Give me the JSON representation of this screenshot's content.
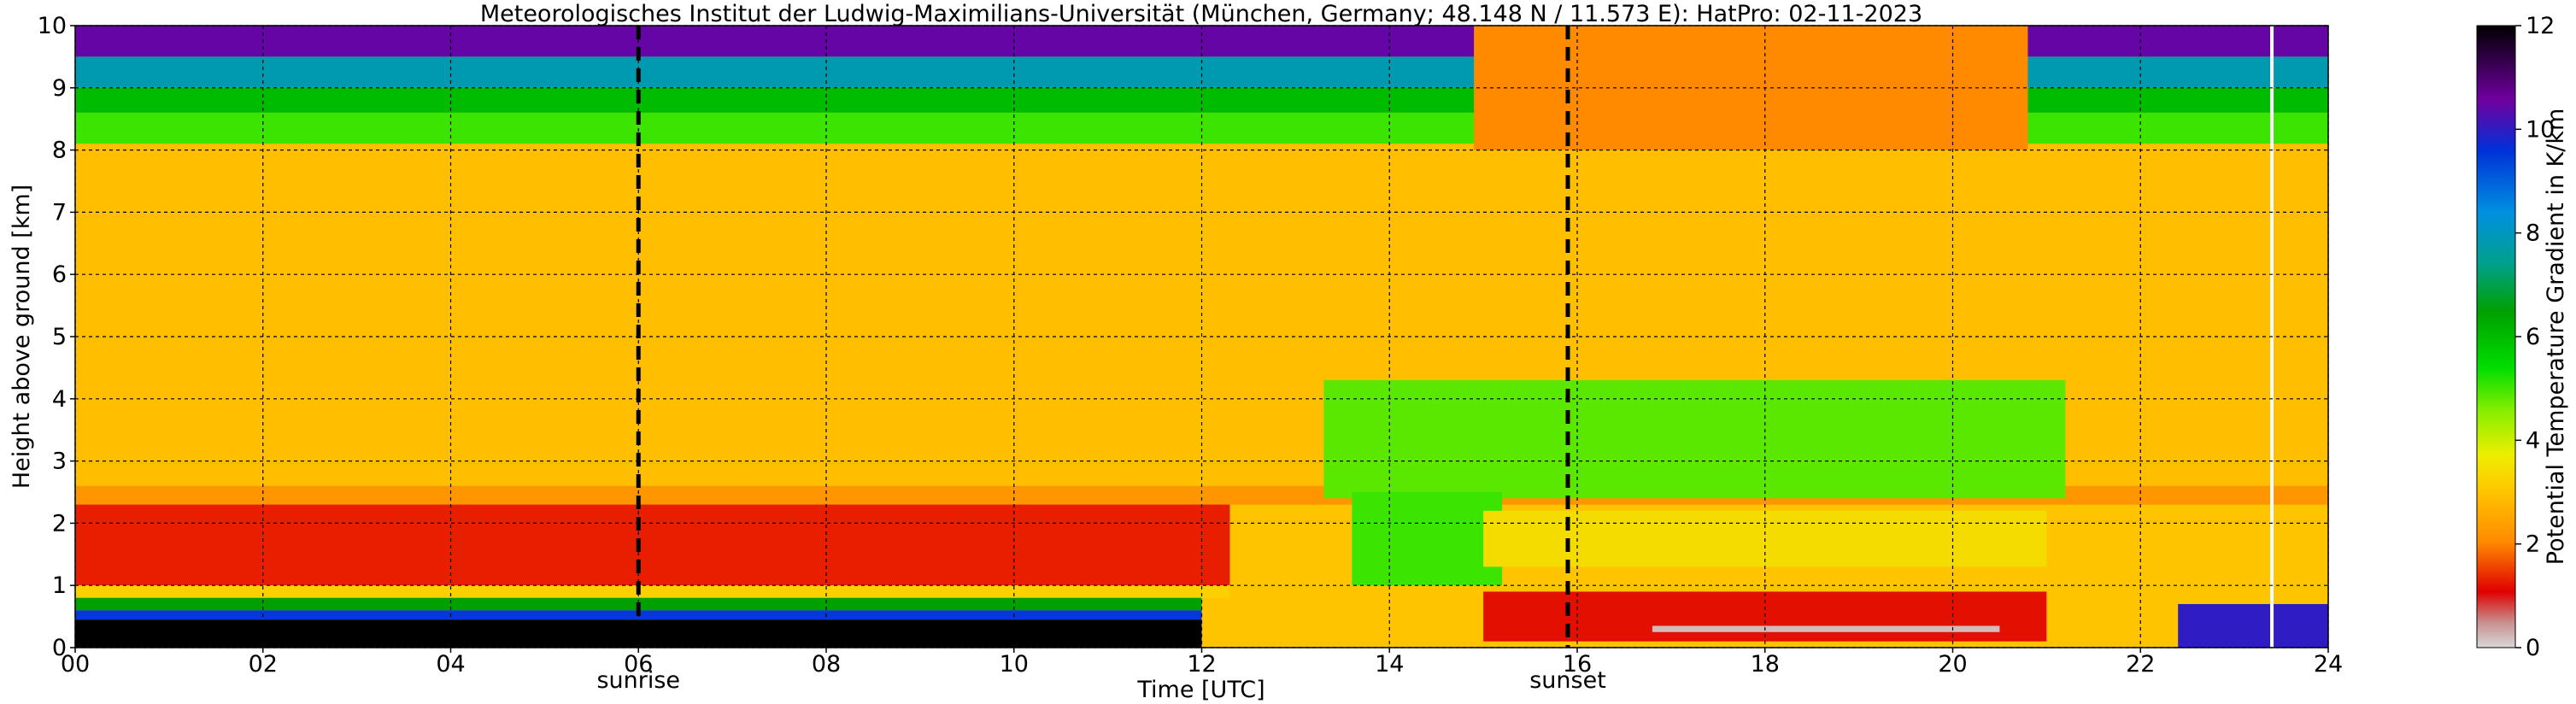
{
  "chart_data": {
    "type": "heatmap",
    "title": "Meteorologisches Institut der Ludwig-Maximilians-Universität (München, Germany; 48.148 N / 11.573 E):    HatPro: 02-11-2023",
    "xlabel": "Time [UTC]",
    "ylabel": "Height above ground [km]",
    "xlim": [
      0,
      24
    ],
    "ylim": [
      0,
      10
    ],
    "x_ticks": [
      "00",
      "02",
      "04",
      "06",
      "08",
      "10",
      "12",
      "14",
      "16",
      "18",
      "20",
      "22",
      "24"
    ],
    "y_ticks": [
      "0",
      "1",
      "2",
      "3",
      "4",
      "5",
      "6",
      "7",
      "8",
      "9",
      "10"
    ],
    "grid": true,
    "colorbar": {
      "label": "Potential Temperature Gradient in K/km",
      "range": [
        0,
        12
      ],
      "ticks": [
        "0",
        "2",
        "4",
        "6",
        "8",
        "10",
        "12"
      ]
    },
    "events": [
      {
        "label": "sunrise",
        "time": 6.0
      },
      {
        "label": "sunset",
        "time": 15.9
      }
    ],
    "data_gap_time": 23.4,
    "regions": [
      {
        "t": [
          0,
          24
        ],
        "h": [
          9.5,
          10
        ],
        "value": 10.5
      },
      {
        "t": [
          0,
          24
        ],
        "h": [
          9.0,
          9.5
        ],
        "value": 7.8
      },
      {
        "t": [
          0,
          24
        ],
        "h": [
          8.6,
          9.0
        ],
        "value": 6.0
      },
      {
        "t": [
          0,
          24
        ],
        "h": [
          8.1,
          8.6
        ],
        "value": 5.0
      },
      {
        "t": [
          0,
          24
        ],
        "h": [
          2.6,
          8.1
        ],
        "value": 2.9
      },
      {
        "t": [
          0,
          24
        ],
        "h": [
          2.3,
          2.6
        ],
        "value": 2.2
      },
      {
        "t": [
          0,
          24
        ],
        "h": [
          1.0,
          2.3
        ],
        "value": 1.3
      },
      {
        "t": [
          0,
          24
        ],
        "h": [
          0.8,
          1.0
        ],
        "value": 3.2
      },
      {
        "t": [
          0,
          12
        ],
        "h": [
          0.6,
          0.8
        ],
        "value": 6.5
      },
      {
        "t": [
          0,
          12
        ],
        "h": [
          0.45,
          0.6
        ],
        "value": 9.5
      },
      {
        "t": [
          0,
          12
        ],
        "h": [
          0.0,
          0.45
        ],
        "value": 12
      },
      {
        "t": [
          12.3,
          24
        ],
        "h": [
          0.0,
          2.3
        ],
        "value": 3.0
      },
      {
        "t": [
          13.3,
          21.2
        ],
        "h": [
          2.4,
          4.3
        ],
        "value": 4.8
      },
      {
        "t": [
          13.6,
          15.2
        ],
        "h": [
          1.0,
          2.5
        ],
        "value": 5.0
      },
      {
        "t": [
          14.9,
          20.8
        ],
        "h": [
          8.0,
          10
        ],
        "value": 2.0
      },
      {
        "t": [
          15.0,
          21.0
        ],
        "h": [
          1.3,
          2.2
        ],
        "value": 3.4
      },
      {
        "t": [
          15.0,
          21.0
        ],
        "h": [
          0.1,
          0.9
        ],
        "value": 1.2
      },
      {
        "t": [
          16.8,
          20.5
        ],
        "h": [
          0.25,
          0.35
        ],
        "value": 0.2
      },
      {
        "t": [
          22.4,
          24
        ],
        "h": [
          0.0,
          0.7
        ],
        "value": 10.0
      }
    ]
  }
}
